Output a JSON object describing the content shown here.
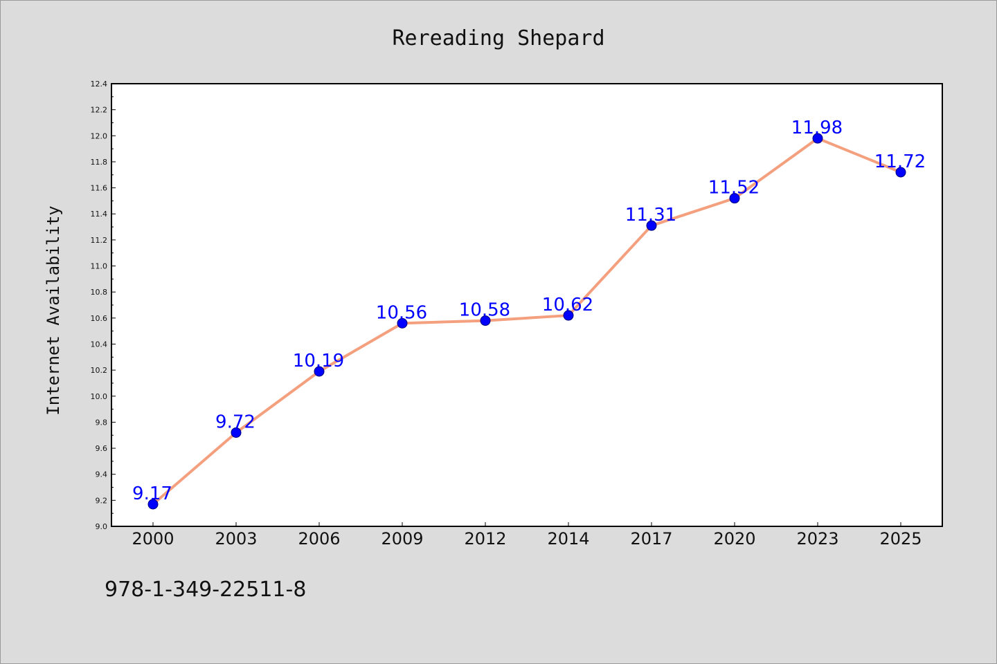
{
  "footer": {
    "code": "978-1-349-22511-8"
  },
  "colors": {
    "background": "#dcdcdc",
    "plot_area": "#ffffff",
    "line": "#f4a07f",
    "marker": "#0000ff",
    "marker_edge": "#00007a",
    "data_label": "#0000ff"
  },
  "chart_data": {
    "type": "line",
    "title": "Rereading Shepard",
    "xlabel": "",
    "ylabel": "Internet Availability",
    "categories": [
      "2000",
      "2003",
      "2006",
      "2009",
      "2012",
      "2014",
      "2017",
      "2020",
      "2023",
      "2025"
    ],
    "series": [
      {
        "values": [
          9.17,
          9.72,
          10.19,
          10.56,
          10.58,
          10.62,
          11.31,
          11.52,
          11.98,
          11.72
        ],
        "data_labels": [
          "9.17",
          "9.72",
          "10.19",
          "10.56",
          "10.58",
          "10.62",
          "11.31",
          "11.52",
          "11.98",
          "11.72"
        ]
      }
    ],
    "ylim": [
      9.0,
      12.4
    ],
    "yticks": [
      "9.0",
      "9.2",
      "9.4",
      "9.6",
      "9.8",
      "10.0",
      "10.2",
      "10.4",
      "10.6",
      "10.8",
      "11.0",
      "11.2",
      "11.4",
      "11.6",
      "11.8",
      "12.0",
      "12.2",
      "12.4"
    ],
    "grid": false,
    "legend": "none"
  }
}
